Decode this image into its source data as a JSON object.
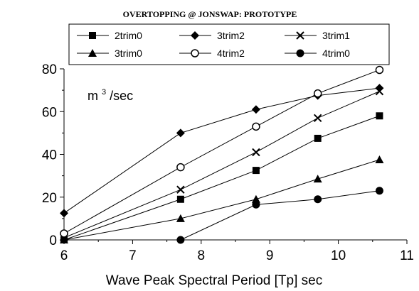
{
  "chart_data": {
    "type": "line",
    "title": "OVERTOPPING @ JONSWAP: PROTOTYPE",
    "xlabel": "Wave Peak Spectral Period [Tp] sec",
    "ylabel": "",
    "unit_annotation": {
      "base": "m",
      "superscript": "3",
      "suffix": "/sec"
    },
    "xlim": [
      6,
      11
    ],
    "ylim": [
      0,
      80
    ],
    "x_ticks": [
      "6",
      "7",
      "8",
      "9",
      "10",
      "11"
    ],
    "y_ticks": [
      "0",
      "20",
      "40",
      "60",
      "80"
    ],
    "grid": false,
    "legend_position": "top",
    "series": [
      {
        "name": "2trim0",
        "marker": "square",
        "x": [
          6,
          7.7,
          8.8,
          9.7,
          10.6
        ],
        "values": [
          0,
          19,
          32.5,
          47.5,
          58
        ]
      },
      {
        "name": "3trim2",
        "marker": "diamond",
        "x": [
          6,
          7.7,
          8.8,
          9.7,
          10.6
        ],
        "values": [
          12.5,
          50,
          61,
          67.5,
          71
        ]
      },
      {
        "name": "3trim1",
        "marker": "x",
        "x": [
          6,
          7.7,
          8.8,
          9.7,
          10.6
        ],
        "values": [
          1,
          23.5,
          41,
          57,
          69.5
        ]
      },
      {
        "name": "3trim0",
        "marker": "triangle",
        "x": [
          6,
          7.7,
          8.8,
          9.7,
          10.6
        ],
        "values": [
          0,
          10,
          19,
          28.5,
          37.5
        ]
      },
      {
        "name": "4trim2",
        "marker": "circle-open",
        "x": [
          6,
          7.7,
          8.8,
          9.7,
          10.6
        ],
        "values": [
          3,
          34,
          53,
          68.5,
          79.5
        ]
      },
      {
        "name": "4trim0",
        "marker": "circle-filled",
        "x": [
          7.7,
          8.8,
          9.7,
          10.6
        ],
        "values": [
          0,
          16.5,
          19,
          23
        ]
      }
    ]
  }
}
